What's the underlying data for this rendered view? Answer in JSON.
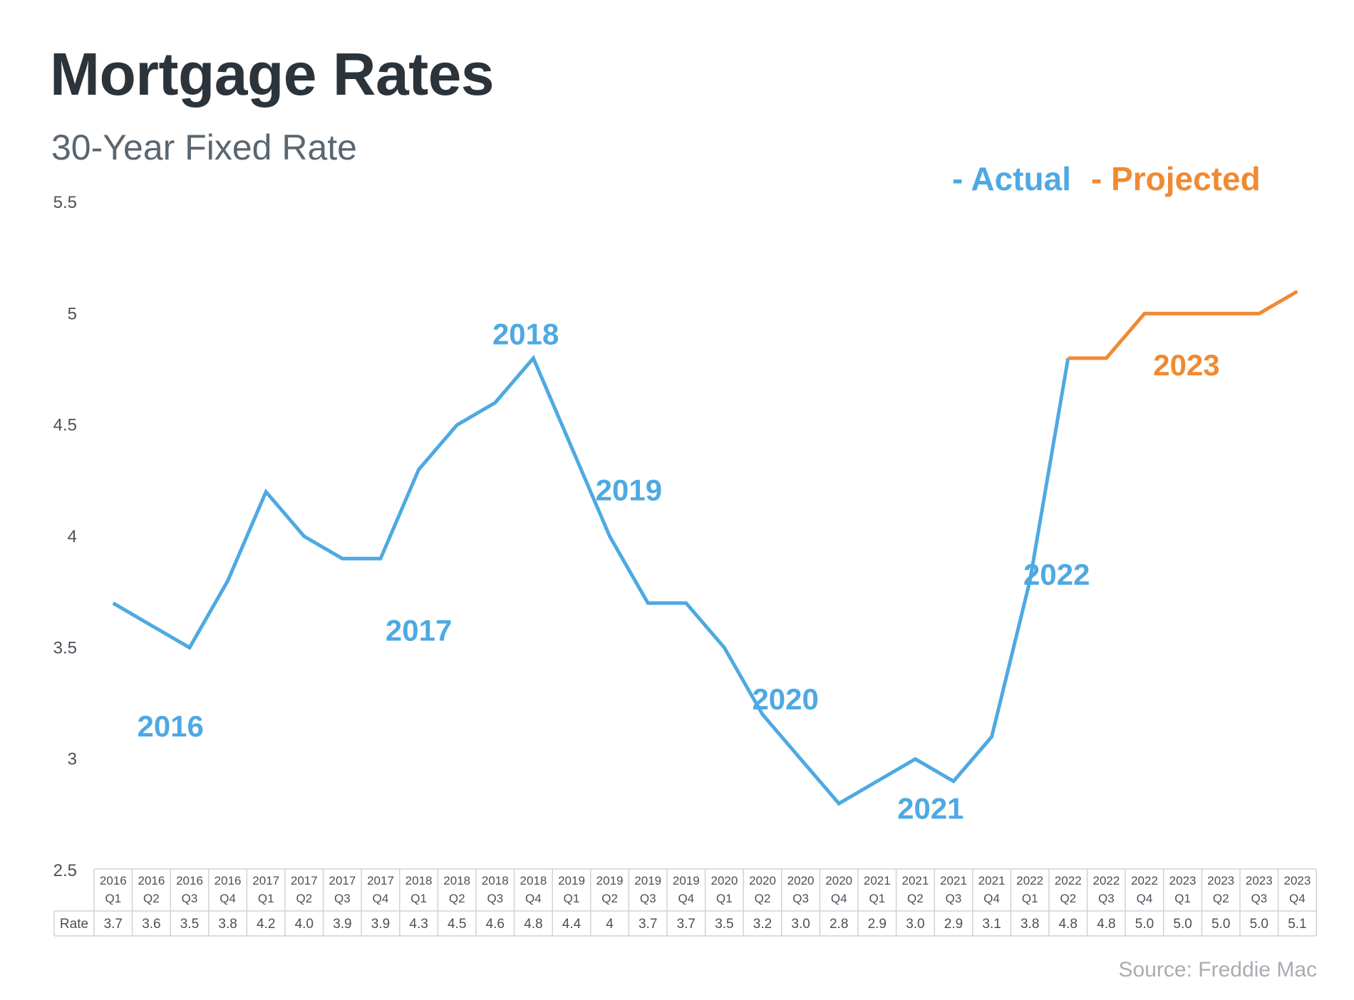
{
  "title": "Mortgage Rates",
  "subtitle": "30-Year Fixed Rate",
  "legend": {
    "actual": "- Actual",
    "projected": "- Projected"
  },
  "source": "Source: Freddie Mac",
  "colors": {
    "actual": "#4ea9e2",
    "projected": "#f08a32",
    "title": "#2b333b"
  },
  "chart_data": {
    "type": "line",
    "title": "Mortgage Rates",
    "subtitle": "30-Year Fixed Rate",
    "xlabel": "",
    "ylabel": "",
    "ylim": [
      2.5,
      5.5
    ],
    "yticks": [
      "2.5",
      "3",
      "3.5",
      "4",
      "4.5",
      "5",
      "5.5"
    ],
    "categories": [
      [
        "2016",
        "Q1"
      ],
      [
        "2016",
        "Q2"
      ],
      [
        "2016",
        "Q3"
      ],
      [
        "2016",
        "Q4"
      ],
      [
        "2017",
        "Q1"
      ],
      [
        "2017",
        "Q2"
      ],
      [
        "2017",
        "Q3"
      ],
      [
        "2017",
        "Q4"
      ],
      [
        "2018",
        "Q1"
      ],
      [
        "2018",
        "Q2"
      ],
      [
        "2018",
        "Q3"
      ],
      [
        "2018",
        "Q4"
      ],
      [
        "2019",
        "Q1"
      ],
      [
        "2019",
        "Q2"
      ],
      [
        "2019",
        "Q3"
      ],
      [
        "2019",
        "Q4"
      ],
      [
        "2020",
        "Q1"
      ],
      [
        "2020",
        "Q2"
      ],
      [
        "2020",
        "Q3"
      ],
      [
        "2020",
        "Q4"
      ],
      [
        "2021",
        "Q1"
      ],
      [
        "2021",
        "Q2"
      ],
      [
        "2021",
        "Q3"
      ],
      [
        "2021",
        "Q4"
      ],
      [
        "2022",
        "Q1"
      ],
      [
        "2022",
        "Q2"
      ],
      [
        "2022",
        "Q3"
      ],
      [
        "2022",
        "Q4"
      ],
      [
        "2023",
        "Q1"
      ],
      [
        "2023",
        "Q2"
      ],
      [
        "2023",
        "Q3"
      ],
      [
        "2023",
        "Q4"
      ]
    ],
    "row_label": "Rate",
    "table_values": [
      "3.7",
      "3.6",
      "3.5",
      "3.8",
      "4.2",
      "4.0",
      "3.9",
      "3.9",
      "4.3",
      "4.5",
      "4.6",
      "4.8",
      "4.4",
      "4",
      "3.7",
      "3.7",
      "3.5",
      "3.2",
      "3.0",
      "2.8",
      "2.9",
      "3.0",
      "2.9",
      "3.1",
      "3.8",
      "4.8",
      "4.8",
      "5.0",
      "5.0",
      "5.0",
      "5.0",
      "5.1"
    ],
    "series": [
      {
        "name": "Actual",
        "start": 0,
        "end": 25,
        "color": "#4ea9e2"
      },
      {
        "name": "Projected",
        "start": 25,
        "end": 31,
        "color": "#f08a32"
      }
    ],
    "values": [
      3.7,
      3.6,
      3.5,
      3.8,
      4.2,
      4.0,
      3.9,
      3.9,
      4.3,
      4.5,
      4.6,
      4.8,
      4.4,
      4.0,
      3.7,
      3.7,
      3.5,
      3.2,
      3.0,
      2.8,
      2.9,
      3.0,
      2.9,
      3.1,
      3.8,
      4.8,
      4.8,
      5.0,
      5.0,
      5.0,
      5.0,
      5.1
    ],
    "annotations": [
      {
        "text": "2016",
        "x": 2.0,
        "y": 3.15,
        "series": "Actual"
      },
      {
        "text": "2017",
        "x": 8.5,
        "y": 3.58,
        "series": "Actual"
      },
      {
        "text": "2018",
        "x": 11.3,
        "y": 4.91,
        "series": "Actual"
      },
      {
        "text": "2019",
        "x": 14.0,
        "y": 4.21,
        "series": "Actual"
      },
      {
        "text": "2020",
        "x": 18.1,
        "y": 3.27,
        "series": "Actual"
      },
      {
        "text": "2021",
        "x": 21.9,
        "y": 2.78,
        "series": "Actual"
      },
      {
        "text": "2022",
        "x": 25.2,
        "y": 3.83,
        "series": "Actual"
      },
      {
        "text": "2023",
        "x": 28.6,
        "y": 4.77,
        "series": "Projected"
      }
    ]
  }
}
